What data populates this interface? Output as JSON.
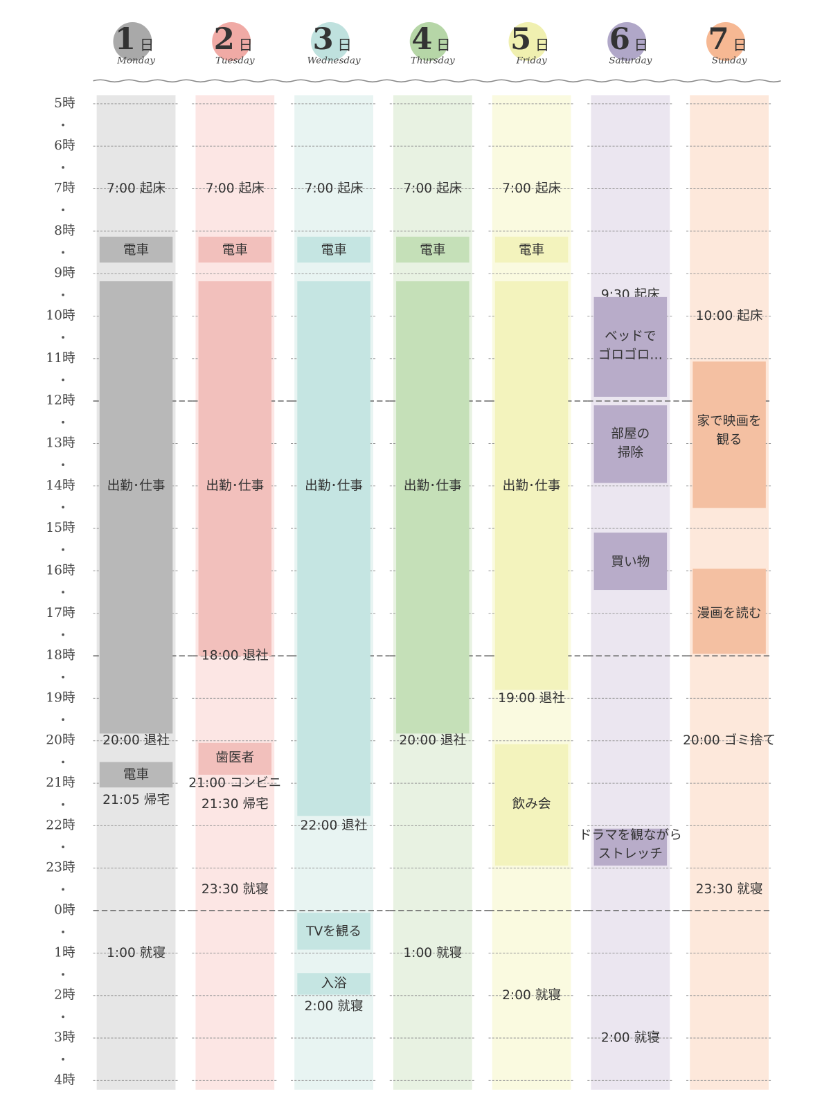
{
  "hours": [
    "5時",
    "6時",
    "7時",
    "8時",
    "9時",
    "10時",
    "11時",
    "12時",
    "13時",
    "14時",
    "15時",
    "16時",
    "17時",
    "18時",
    "19時",
    "20時",
    "21時",
    "22時",
    "23時",
    "0時",
    "1時",
    "2時",
    "3時",
    "4時"
  ],
  "days": [
    {
      "number": "1",
      "unit": "日",
      "weekday": "Monday",
      "events": [
        "7:00 起床",
        "電車",
        "出勤･仕事",
        "20:00 退社",
        "電車",
        "21:05 帰宅",
        "1:00 就寝"
      ]
    },
    {
      "number": "2",
      "unit": "日",
      "weekday": "Tuesday",
      "events": [
        "7:00 起床",
        "電車",
        "出勤･仕事",
        "18:00 退社",
        "歯医者",
        "21:00 コンビニ",
        "21:30 帰宅",
        "23:30 就寝"
      ]
    },
    {
      "number": "3",
      "unit": "日",
      "weekday": "Wednesday",
      "events": [
        "7:00 起床",
        "電車",
        "出勤･仕事",
        "22:00 退社",
        "TVを観る",
        "入浴",
        "2:00 就寝"
      ]
    },
    {
      "number": "4",
      "unit": "日",
      "weekday": "Thursday",
      "events": [
        "7:00 起床",
        "電車",
        "出勤･仕事",
        "20:00 退社",
        "1:00 就寝"
      ]
    },
    {
      "number": "5",
      "unit": "日",
      "weekday": "Friday",
      "events": [
        "7:00 起床",
        "電車",
        "出勤･仕事",
        "19:00 退社",
        "飲み会",
        "2:00 就寝"
      ]
    },
    {
      "number": "6",
      "unit": "日",
      "weekday": "Saturday",
      "events": [
        "9:30 起床",
        [
          "ベッドで",
          "ゴロゴロ…"
        ],
        [
          "部屋の",
          "掃除"
        ],
        "買い物",
        [
          "ドラマを観ながら",
          "ストレッチ"
        ],
        "2:00 就寝"
      ]
    },
    {
      "number": "7",
      "unit": "日",
      "weekday": "Sunday",
      "events": [
        "10:00 起床",
        [
          "家で映画を",
          "観る"
        ],
        "漫画を読む",
        "20:00 ゴミ捨て",
        "23:30 就寝"
      ]
    }
  ]
}
